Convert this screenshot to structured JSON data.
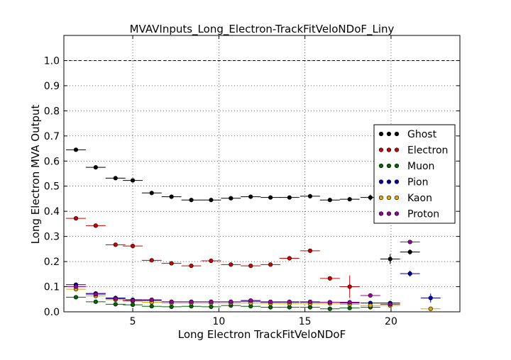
{
  "chart_data": {
    "type": "scatter",
    "title": "MVAVInputs_Long_Electron-TrackFitVeloNDoF_Liny",
    "xlabel": "Long Electron TrackFitVeloNDoF",
    "ylabel": "Long Electron MVA Output",
    "xlim": [
      1,
      24
    ],
    "ylim": [
      0,
      1.1
    ],
    "xticks": [
      5,
      10,
      15,
      20
    ],
    "xtick_labels": [
      "5",
      "10",
      "15",
      "20"
    ],
    "yticks": [
      0.0,
      0.1,
      0.2,
      0.3,
      0.4,
      0.5,
      0.6,
      0.7,
      0.8,
      0.9,
      1.0
    ],
    "ytick_labels": [
      "0.0",
      "0.1",
      "0.2",
      "0.3",
      "0.4",
      "0.5",
      "0.6",
      "0.7",
      "0.8",
      "0.9",
      "1.0"
    ],
    "grid": true,
    "reference_line": {
      "y": 1.0,
      "style": "dashed"
    },
    "legend_position": "right",
    "bin_half_width": 0.575,
    "series": [
      {
        "name": "Ghost",
        "color": "#000000",
        "x": [
          1.7,
          2.85,
          4.0,
          5.0,
          6.1,
          7.25,
          8.4,
          9.55,
          10.7,
          11.85,
          13.0,
          14.1,
          15.3,
          16.45,
          17.6,
          18.8,
          19.95,
          21.1
        ],
        "y": [
          0.645,
          0.575,
          0.532,
          0.523,
          0.473,
          0.458,
          0.445,
          0.445,
          0.452,
          0.458,
          0.455,
          0.455,
          0.46,
          0.445,
          0.448,
          0.455,
          0.21,
          0.238
        ],
        "yerr": [
          0.004,
          0.003,
          0.003,
          0.003,
          0.003,
          0.003,
          0.003,
          0.003,
          0.003,
          0.003,
          0.003,
          0.003,
          0.004,
          0.005,
          0.007,
          0.012,
          0.02,
          0.01
        ]
      },
      {
        "name": "Electron",
        "color": "#cc0000",
        "x": [
          1.7,
          2.85,
          4.0,
          5.0,
          6.1,
          7.25,
          8.4,
          9.55,
          10.7,
          11.85,
          13.0,
          14.1,
          15.3,
          16.45,
          17.6
        ],
        "y": [
          0.372,
          0.343,
          0.267,
          0.262,
          0.205,
          0.193,
          0.183,
          0.203,
          0.188,
          0.183,
          0.188,
          0.213,
          0.243,
          0.133,
          0.1
        ],
        "yerr": [
          0.003,
          0.003,
          0.003,
          0.003,
          0.003,
          0.003,
          0.003,
          0.003,
          0.003,
          0.003,
          0.003,
          0.004,
          0.005,
          0.008,
          0.045
        ]
      },
      {
        "name": "Muon",
        "color": "#006600",
        "x": [
          1.7,
          2.85,
          4.0,
          5.0,
          6.1,
          7.25,
          8.4,
          9.55,
          10.7,
          11.85,
          13.0,
          14.1,
          15.3,
          16.45,
          17.6,
          18.8
        ],
        "y": [
          0.058,
          0.04,
          0.03,
          0.028,
          0.022,
          0.02,
          0.022,
          0.02,
          0.025,
          0.022,
          0.018,
          0.018,
          0.018,
          0.012,
          0.015,
          0.018
        ],
        "yerr": [
          0.002,
          0.002,
          0.002,
          0.002,
          0.002,
          0.002,
          0.002,
          0.002,
          0.002,
          0.002,
          0.002,
          0.002,
          0.002,
          0.002,
          0.003,
          0.004
        ]
      },
      {
        "name": "Pion",
        "color": "#0000aa",
        "x": [
          1.7,
          2.85,
          4.0,
          5.0,
          6.1,
          7.25,
          8.4,
          9.55,
          10.7,
          11.85,
          13.0,
          14.1,
          15.3,
          16.45,
          17.6,
          18.8,
          19.95,
          21.1,
          22.3
        ],
        "y": [
          0.108,
          0.073,
          0.055,
          0.048,
          0.045,
          0.04,
          0.04,
          0.04,
          0.04,
          0.042,
          0.038,
          0.038,
          0.038,
          0.038,
          0.035,
          0.035,
          0.035,
          0.152,
          0.055
        ],
        "yerr": [
          0.002,
          0.002,
          0.002,
          0.002,
          0.002,
          0.002,
          0.002,
          0.002,
          0.002,
          0.002,
          0.002,
          0.002,
          0.002,
          0.003,
          0.003,
          0.004,
          0.005,
          0.012,
          0.018
        ]
      },
      {
        "name": "Kaon",
        "color": "#ddaa00",
        "x": [
          1.7,
          2.85,
          4.0,
          5.0,
          6.1,
          7.25,
          8.4,
          9.55,
          10.7,
          11.85,
          13.0,
          14.1,
          15.3,
          16.45,
          17.6,
          18.8,
          19.95,
          22.3
        ],
        "y": [
          0.09,
          0.063,
          0.048,
          0.042,
          0.038,
          0.035,
          0.035,
          0.035,
          0.035,
          0.035,
          0.033,
          0.032,
          0.032,
          0.033,
          0.03,
          0.025,
          0.025,
          0.012
        ],
        "yerr": [
          0.002,
          0.002,
          0.002,
          0.002,
          0.002,
          0.002,
          0.002,
          0.002,
          0.002,
          0.002,
          0.002,
          0.002,
          0.002,
          0.003,
          0.004,
          0.005,
          0.006,
          0.004
        ]
      },
      {
        "name": "Proton",
        "color": "#990099",
        "x": [
          1.7,
          2.85,
          4.0,
          5.0,
          6.1,
          7.25,
          8.4,
          9.55,
          10.7,
          11.85,
          13.0,
          14.1,
          15.3,
          16.45,
          17.6,
          18.8,
          19.95,
          21.1
        ],
        "y": [
          0.1,
          0.07,
          0.052,
          0.045,
          0.048,
          0.04,
          0.04,
          0.04,
          0.04,
          0.045,
          0.04,
          0.04,
          0.04,
          0.038,
          0.038,
          0.065,
          0.03,
          0.278
        ],
        "yerr": [
          0.002,
          0.002,
          0.002,
          0.002,
          0.002,
          0.002,
          0.002,
          0.002,
          0.002,
          0.002,
          0.002,
          0.002,
          0.002,
          0.003,
          0.004,
          0.008,
          0.006,
          0.006
        ]
      }
    ]
  }
}
